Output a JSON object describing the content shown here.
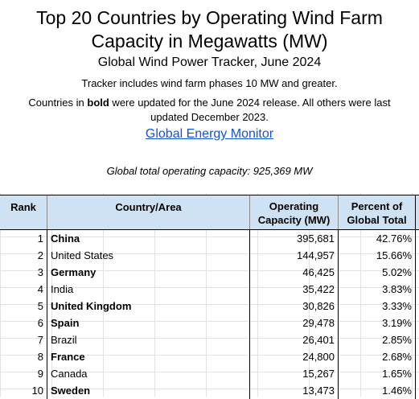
{
  "header": {
    "title_line1": "Top 20 Countries by Operating Wind Farm",
    "title_line2": "Capacity in Megawatts (MW)",
    "subtitle": "Global Wind Power Tracker, June 2024",
    "tracker_note": "Tracker includes wind farm phases 10 MW and greater.",
    "update_note_prefix": "Countries in ",
    "update_note_bold": "bold",
    "update_note_suffix": " were updated for the June 2024 release. All others were last updated December 2023.",
    "link_text": "Global Energy Monitor",
    "total_text": "Global total operating capacity: 925,369 MW"
  },
  "table": {
    "columns": {
      "rank": "Rank",
      "country": "Country/Area",
      "capacity_line1": "Operating",
      "capacity_line2": "Capacity (MW)",
      "percent_line1": "Percent of",
      "percent_line2": "Global Total"
    },
    "rows": [
      {
        "rank": "1",
        "country": "China",
        "capacity": "395,681",
        "percent": "42.76%",
        "bold": true
      },
      {
        "rank": "2",
        "country": "United States",
        "capacity": "144,957",
        "percent": "15.66%",
        "bold": false
      },
      {
        "rank": "3",
        "country": "Germany",
        "capacity": "46,425",
        "percent": "5.02%",
        "bold": true
      },
      {
        "rank": "4",
        "country": "India",
        "capacity": "35,422",
        "percent": "3.83%",
        "bold": false
      },
      {
        "rank": "5",
        "country": "United Kingdom",
        "capacity": "30,826",
        "percent": "3.33%",
        "bold": true
      },
      {
        "rank": "6",
        "country": "Spain",
        "capacity": "29,478",
        "percent": "3.19%",
        "bold": true
      },
      {
        "rank": "7",
        "country": "Brazil",
        "capacity": "26,401",
        "percent": "2.85%",
        "bold": false
      },
      {
        "rank": "8",
        "country": "France",
        "capacity": "24,800",
        "percent": "2.68%",
        "bold": true
      },
      {
        "rank": "9",
        "country": "Canada",
        "capacity": "15,267",
        "percent": "1.65%",
        "bold": false
      },
      {
        "rank": "10",
        "country": "Sweden",
        "capacity": "13,473",
        "percent": "1.46%",
        "bold": true
      }
    ]
  },
  "colors": {
    "header_fill": "#cfe2f3",
    "link": "#1155cc",
    "gridline": "#e2e2e2"
  }
}
